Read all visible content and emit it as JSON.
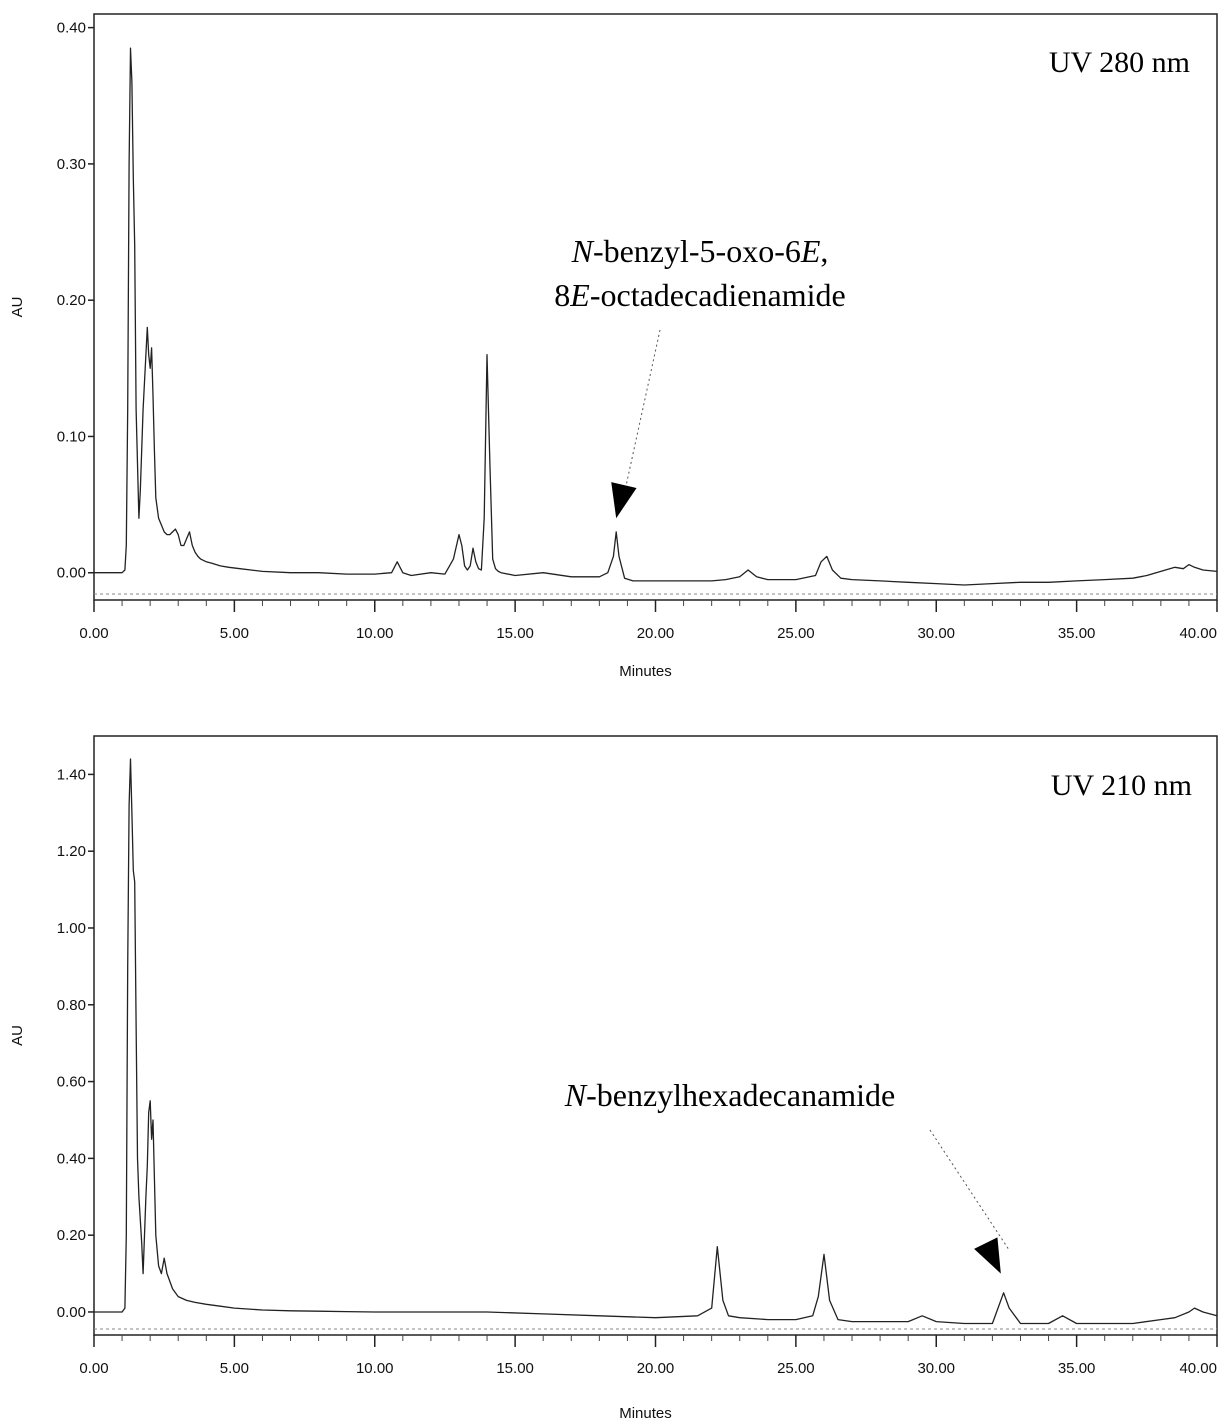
{
  "chart_data": [
    {
      "type": "line",
      "title": "",
      "xlabel": "Minutes",
      "ylabel": "AU",
      "xlim": [
        0,
        40
      ],
      "ylim": [
        -0.02,
        0.41
      ],
      "x_ticks": [
        0,
        5,
        10,
        15,
        20,
        25,
        30,
        35,
        40
      ],
      "x_tick_labels": [
        "0.00",
        "5.00",
        "10.00",
        "15.00",
        "20.00",
        "25.00",
        "30.00",
        "35.00",
        "40.00"
      ],
      "y_ticks": [
        0,
        0.1,
        0.2,
        0.3,
        0.4
      ],
      "y_tick_labels": [
        "0.00",
        "0.10",
        "0.20",
        "0.30",
        "0.40"
      ],
      "detector_label": "UV  280 nm",
      "annotation": {
        "lines": [
          [
            {
              "t": "N",
              "italic": true
            },
            {
              "t": "-benzyl-5-oxo-6",
              "italic": false
            },
            {
              "t": "E",
              "italic": true
            },
            {
              "t": ",",
              "italic": false
            }
          ],
          [
            {
              "t": "8",
              "italic": false
            },
            {
              "t": "E",
              "italic": true
            },
            {
              "t": "-octadecadienamide",
              "italic": false
            }
          ]
        ],
        "arrow_to": {
          "x": 18.6,
          "y": 0.04
        }
      },
      "series": [
        {
          "color": "#222222",
          "x": [
            0,
            1.0,
            1.1,
            1.15,
            1.2,
            1.25,
            1.3,
            1.35,
            1.4,
            1.45,
            1.5,
            1.55,
            1.6,
            1.65,
            1.7,
            1.75,
            1.8,
            1.9,
            1.95,
            2.0,
            2.05,
            2.1,
            2.15,
            2.2,
            2.3,
            2.4,
            2.5,
            2.6,
            2.7,
            2.8,
            2.9,
            3.0,
            3.1,
            3.2,
            3.3,
            3.4,
            3.5,
            3.6,
            3.7,
            3.8,
            4.0,
            4.2,
            4.5,
            4.8,
            5.2,
            6,
            7,
            8,
            9,
            10,
            10.6,
            10.8,
            11,
            11.3,
            12,
            12.5,
            12.8,
            13.0,
            13.1,
            13.2,
            13.3,
            13.4,
            13.5,
            13.6,
            13.7,
            13.8,
            13.9,
            14.0,
            14.1,
            14.2,
            14.3,
            14.4,
            14.5,
            15,
            16,
            17,
            18,
            18.3,
            18.5,
            18.6,
            18.7,
            18.9,
            19.2,
            20,
            21,
            22,
            22.5,
            23.0,
            23.3,
            23.6,
            24,
            25,
            25.7,
            25.9,
            26.1,
            26.3,
            26.6,
            27,
            28,
            29,
            30,
            31,
            32,
            33,
            34,
            35,
            36,
            37,
            37.5,
            38,
            38.5,
            38.8,
            39,
            39.2,
            39.5,
            40
          ],
          "y": [
            0,
            0,
            0.002,
            0.02,
            0.12,
            0.3,
            0.385,
            0.36,
            0.29,
            0.24,
            0.12,
            0.08,
            0.04,
            0.06,
            0.09,
            0.12,
            0.14,
            0.18,
            0.16,
            0.15,
            0.165,
            0.13,
            0.09,
            0.055,
            0.04,
            0.035,
            0.03,
            0.028,
            0.028,
            0.03,
            0.032,
            0.028,
            0.02,
            0.02,
            0.025,
            0.03,
            0.02,
            0.015,
            0.012,
            0.01,
            0.008,
            0.007,
            0.005,
            0.004,
            0.003,
            0.001,
            0,
            0,
            -0.001,
            -0.001,
            0,
            0.008,
            0,
            -0.002,
            0,
            -0.001,
            0.01,
            0.028,
            0.02,
            0.005,
            0.002,
            0.005,
            0.018,
            0.008,
            0.003,
            0.002,
            0.04,
            0.16,
            0.08,
            0.01,
            0.003,
            0.001,
            0,
            -0.002,
            0,
            -0.003,
            -0.003,
            0,
            0.012,
            0.03,
            0.012,
            -0.004,
            -0.006,
            -0.006,
            -0.006,
            -0.006,
            -0.005,
            -0.003,
            0.002,
            -0.003,
            -0.005,
            -0.005,
            -0.002,
            0.008,
            0.012,
            0.002,
            -0.004,
            -0.005,
            -0.006,
            -0.007,
            -0.008,
            -0.009,
            -0.008,
            -0.007,
            -0.007,
            -0.006,
            -0.005,
            -0.004,
            -0.002,
            0.001,
            0.004,
            0.003,
            0.006,
            0.004,
            0.002,
            0.001
          ]
        }
      ]
    },
    {
      "type": "line",
      "title": "",
      "xlabel": "Minutes",
      "ylabel": "AU",
      "xlim": [
        0,
        40
      ],
      "ylim": [
        -0.06,
        1.5
      ],
      "x_ticks": [
        0,
        5,
        10,
        15,
        20,
        25,
        30,
        35,
        40
      ],
      "x_tick_labels": [
        "0.00",
        "5.00",
        "10.00",
        "15.00",
        "20.00",
        "25.00",
        "30.00",
        "35.00",
        "40.00"
      ],
      "y_ticks": [
        0,
        0.2,
        0.4,
        0.6,
        0.8,
        1.0,
        1.2,
        1.4
      ],
      "y_tick_labels": [
        "0.00",
        "0.20",
        "0.40",
        "0.60",
        "0.80",
        "1.00",
        "1.20",
        "1.40"
      ],
      "detector_label": "UV  210 nm",
      "annotation": {
        "lines": [
          [
            {
              "t": "N",
              "italic": true
            },
            {
              "t": "-benzylhexadecanamide",
              "italic": false
            }
          ]
        ],
        "arrow_to": {
          "x": 32.3,
          "y": 0.1
        }
      },
      "series": [
        {
          "color": "#222222",
          "x": [
            0,
            1.0,
            1.1,
            1.15,
            1.2,
            1.25,
            1.3,
            1.35,
            1.4,
            1.45,
            1.5,
            1.55,
            1.6,
            1.7,
            1.75,
            1.8,
            1.85,
            1.9,
            1.95,
            2.0,
            2.05,
            2.1,
            2.15,
            2.2,
            2.3,
            2.4,
            2.5,
            2.6,
            2.8,
            3.0,
            3.3,
            3.6,
            4,
            4.5,
            5,
            6,
            7,
            8,
            9,
            10,
            12,
            14,
            16,
            18,
            20,
            21.5,
            22,
            22.2,
            22.4,
            22.6,
            23,
            24,
            25,
            25.6,
            25.8,
            26.0,
            26.2,
            26.5,
            27,
            28,
            29,
            29.5,
            30,
            31,
            32,
            32.2,
            32.4,
            32.6,
            33,
            34,
            34.5,
            35,
            36,
            37,
            38,
            38.5,
            39,
            39.2,
            39.5,
            40
          ],
          "y": [
            0,
            0,
            0.01,
            0.2,
            0.9,
            1.32,
            1.44,
            1.3,
            1.15,
            1.12,
            0.75,
            0.4,
            0.3,
            0.18,
            0.1,
            0.2,
            0.3,
            0.38,
            0.52,
            0.55,
            0.45,
            0.5,
            0.35,
            0.2,
            0.12,
            0.1,
            0.14,
            0.1,
            0.06,
            0.04,
            0.03,
            0.025,
            0.02,
            0.015,
            0.01,
            0.005,
            0.003,
            0.002,
            0.001,
            0,
            0,
            0,
            -0.005,
            -0.01,
            -0.015,
            -0.01,
            0.01,
            0.17,
            0.03,
            -0.01,
            -0.015,
            -0.02,
            -0.02,
            -0.01,
            0.04,
            0.15,
            0.03,
            -0.02,
            -0.025,
            -0.025,
            -0.025,
            -0.01,
            -0.025,
            -0.03,
            -0.03,
            0.01,
            0.05,
            0.01,
            -0.03,
            -0.03,
            -0.01,
            -0.03,
            -0.03,
            -0.03,
            -0.02,
            -0.015,
            0,
            0.01,
            0,
            -0.01
          ]
        }
      ]
    }
  ]
}
